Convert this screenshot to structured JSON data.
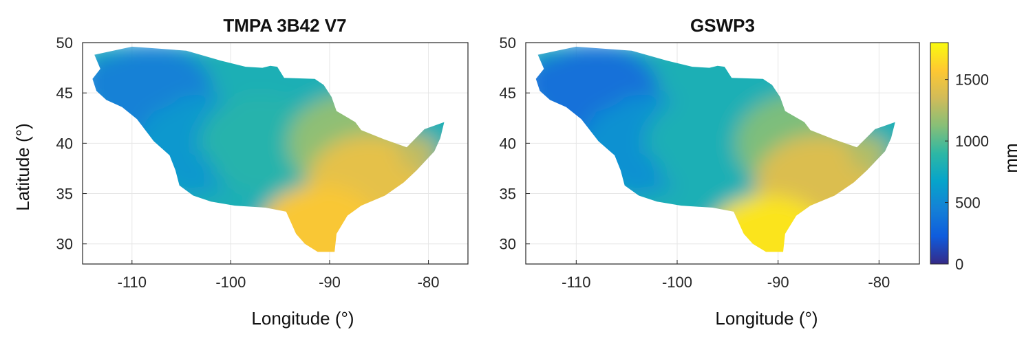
{
  "figure": {
    "ylabel": "Latitude (°)",
    "colorbar": {
      "label": "mm",
      "ticks": [
        0,
        500,
        1000,
        1500
      ],
      "range": [
        0,
        1800
      ],
      "colormap": "parula",
      "colors": [
        "#352a87",
        "#0f5cdd",
        "#1481d6",
        "#06a4ca",
        "#2eb7a4",
        "#87bf77",
        "#d1bb59",
        "#fec832",
        "#f9fb0e"
      ]
    }
  },
  "chart_data": [
    {
      "type": "heatmap",
      "title": "TMPA 3B42 V7",
      "xlabel": "Longitude (°)",
      "ylabel": "Latitude (°)",
      "xlim": [
        -115,
        -76
      ],
      "ylim": [
        28,
        50
      ],
      "xticks": [
        -110,
        -100,
        -90,
        -80
      ],
      "yticks": [
        30,
        35,
        40,
        45,
        50
      ],
      "grid": true,
      "approx_precip_mm": {
        "northwest_lon_-108_lat_45": 450,
        "west_lon_-103_lat_40": 600,
        "center_lon_-97_lat_40": 850,
        "east_lon_-88_lat_40": 1150,
        "southeast_lon_-86_lat_36": 1450,
        "south_lon_-91_lat_31": 1550
      }
    },
    {
      "type": "heatmap",
      "title": "GSWP3",
      "xlabel": "Longitude (°)",
      "xlim": [
        -115,
        -76
      ],
      "ylim": [
        28,
        50
      ],
      "xticks": [
        -110,
        -100,
        -90,
        -80
      ],
      "yticks": [
        30,
        35,
        40,
        45,
        50
      ],
      "grid": true,
      "approx_precip_mm": {
        "northwest_lon_-108_lat_45": 350,
        "west_lon_-103_lat_40": 550,
        "center_lon_-97_lat_40": 800,
        "east_lon_-88_lat_40": 1100,
        "southeast_lon_-86_lat_36": 1400,
        "south_lon_-91_lat_30": 1700
      }
    }
  ]
}
